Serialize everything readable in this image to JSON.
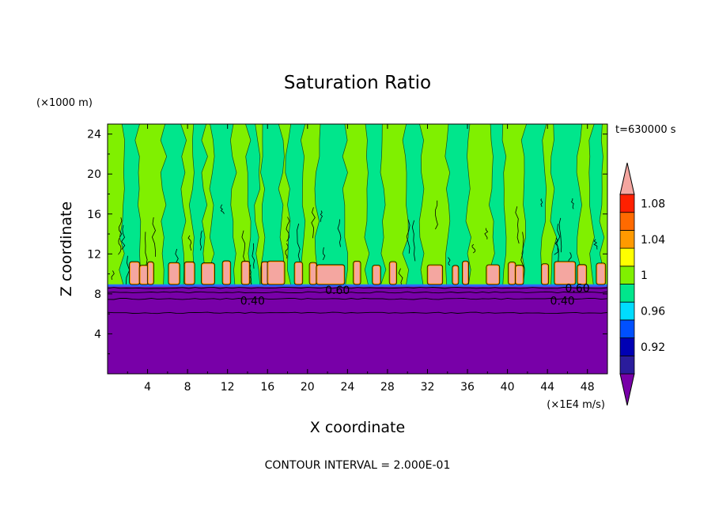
{
  "chart_data": {
    "type": "heatmap",
    "title": "Saturation Ratio",
    "xlabel": "X coordinate",
    "ylabel": "Z coordinate",
    "x_unit": "(×1E4 m/s)",
    "y_unit": "(×1000 m)",
    "time_label": "t=630000 s",
    "footer": "CONTOUR INTERVAL = 2.000E-01",
    "xlim": [
      0,
      50
    ],
    "ylim": [
      0,
      25
    ],
    "xticks": [
      4,
      8,
      12,
      16,
      20,
      24,
      28,
      32,
      36,
      40,
      44,
      48
    ],
    "yticks": [
      4,
      8,
      12,
      16,
      20,
      24
    ],
    "colorbar": {
      "levels": [
        0.92,
        0.96,
        1,
        1.04,
        1.08
      ],
      "labels": [
        "0.92",
        "0.96",
        "1",
        "1.04",
        "1.08"
      ],
      "colors": [
        "#7800a8",
        "#2a1c9c",
        "#0000b4",
        "#0050ff",
        "#00dcff",
        "#00e68c",
        "#80f000",
        "#ffff00",
        "#ff9a00",
        "#ff6a00",
        "#ff2000",
        "#f4a6a0"
      ]
    },
    "contour_labels": [
      {
        "text": "0.40",
        "x": 14.5,
        "y": 7.3
      },
      {
        "text": "0.60",
        "x": 23,
        "y": 8.4
      },
      {
        "text": "0.40",
        "x": 45.5,
        "y": 7.3
      },
      {
        "text": "0.60",
        "x": 47,
        "y": 8.6
      }
    ],
    "regions": {
      "lower_layer_top": 8.8,
      "lower_layer_value": "< 0.92",
      "upper_background_value": "1 - 1.04",
      "moist_columns_value": "0.96 - 1",
      "cloud_band_value": "> 1.08"
    },
    "moist_columns": [
      [
        1.4,
        3.0
      ],
      [
        5.6,
        7.6
      ],
      [
        8.4,
        9.7
      ],
      [
        10.4,
        12.6
      ],
      [
        14.1,
        15.0
      ],
      [
        15.6,
        17.4
      ],
      [
        18.1,
        19.6
      ],
      [
        21.0,
        23.8
      ],
      [
        25.9,
        27.6
      ],
      [
        29.8,
        31.5
      ],
      [
        34.0,
        36.1
      ],
      [
        38.4,
        39.6
      ],
      [
        41.6,
        43.6
      ],
      [
        44.6,
        47.2
      ],
      [
        48.4,
        49.4
      ]
    ],
    "cloud_cells": [
      [
        2.3,
        3.1
      ],
      [
        3.3,
        4.0
      ],
      [
        4.1,
        4.5
      ],
      [
        6.2,
        7.1
      ],
      [
        7.8,
        8.6
      ],
      [
        9.5,
        10.6
      ],
      [
        11.6,
        12.2
      ],
      [
        13.5,
        14.1
      ],
      [
        15.5,
        16.0
      ],
      [
        16.1,
        17.6
      ],
      [
        18.8,
        19.4
      ],
      [
        20.3,
        20.8
      ],
      [
        21.0,
        23.6
      ],
      [
        24.7,
        25.2
      ],
      [
        26.6,
        27.2
      ],
      [
        28.3,
        28.8
      ],
      [
        32.1,
        33.4
      ],
      [
        34.6,
        35.0
      ],
      [
        35.6,
        36.0
      ],
      [
        38.0,
        39.1
      ],
      [
        40.2,
        40.7
      ],
      [
        40.9,
        41.5
      ],
      [
        43.5,
        44.0
      ],
      [
        44.8,
        46.7
      ],
      [
        47.1,
        47.8
      ],
      [
        49.0,
        49.7
      ]
    ]
  }
}
